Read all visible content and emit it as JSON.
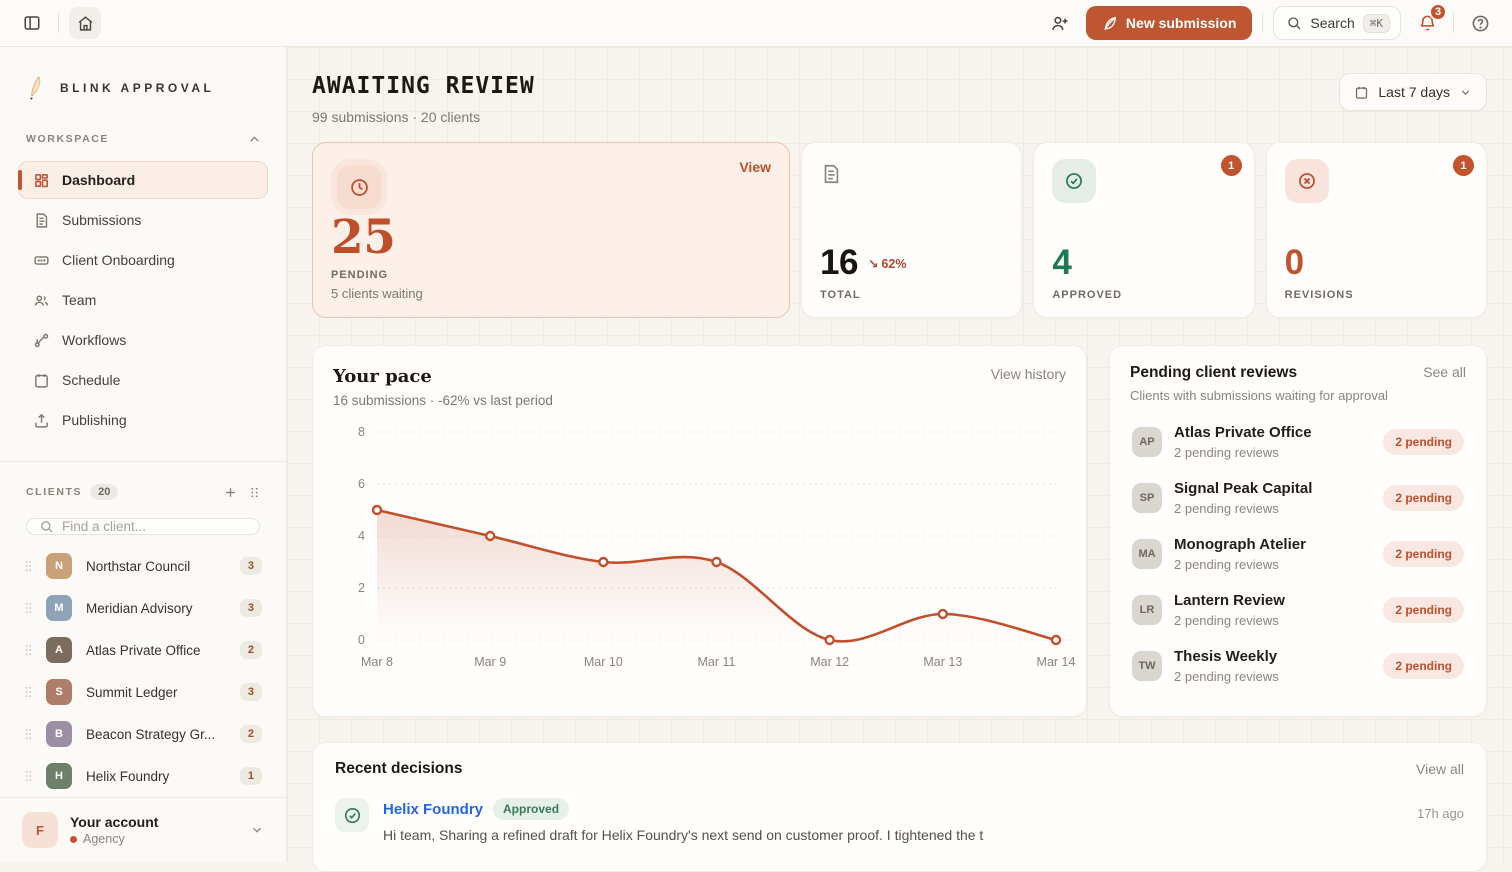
{
  "topbar": {
    "new_submission_label": "New submission",
    "search_label": "Search",
    "search_kbd": "⌘K",
    "notification_count": "3"
  },
  "sidebar": {
    "brand": "BLINK APPROVAL",
    "workspace_label": "WORKSPACE",
    "nav": [
      {
        "label": "Dashboard",
        "icon": "dashboard-grid",
        "active": true
      },
      {
        "label": "Submissions",
        "icon": "document"
      },
      {
        "label": "Client Onboarding",
        "icon": "input-box"
      },
      {
        "label": "Team",
        "icon": "people"
      },
      {
        "label": "Workflows",
        "icon": "branch"
      },
      {
        "label": "Schedule",
        "icon": "calendar"
      },
      {
        "label": "Publishing",
        "icon": "upload"
      }
    ],
    "clients_label": "CLIENTS",
    "clients_count": "20",
    "client_search_placeholder": "Find a client...",
    "clients": [
      {
        "name": "Northstar Council",
        "count": "3"
      },
      {
        "name": "Meridian Advisory",
        "count": "3"
      },
      {
        "name": "Atlas Private Office",
        "count": "2"
      },
      {
        "name": "Summit Ledger",
        "count": "3"
      },
      {
        "name": "Beacon Strategy Gr...",
        "count": "2"
      },
      {
        "name": "Helix Foundry",
        "count": "1"
      }
    ],
    "account": {
      "initial": "F",
      "title": "Your account",
      "role": "Agency"
    }
  },
  "header": {
    "title": "AWAITING REVIEW",
    "subtitle": "99 submissions · 20 clients",
    "period": "Last 7 days"
  },
  "stats": {
    "pending": {
      "value": "25",
      "label": "PENDING",
      "sub": "5 clients waiting",
      "link": "View"
    },
    "total": {
      "value": "16",
      "delta": "62%",
      "trend_down_glyph": "↘",
      "label": "TOTAL"
    },
    "approved": {
      "value": "4",
      "label": "APPROVED",
      "badge": "1"
    },
    "revisions": {
      "value": "0",
      "label": "REVISIONS",
      "badge": "1"
    }
  },
  "pace": {
    "title": "Your pace",
    "subtitle": "16 submissions · -62% vs last period",
    "link": "View history"
  },
  "chart_data": {
    "type": "line",
    "title": "Your pace",
    "x": [
      "Mar 8",
      "Mar 9",
      "Mar 10",
      "Mar 11",
      "Mar 12",
      "Mar 13",
      "Mar 14"
    ],
    "series": [
      {
        "name": "submissions",
        "values": [
          5,
          4,
          3,
          3,
          0,
          1,
          0
        ]
      }
    ],
    "ylim": [
      0,
      8
    ],
    "yticks": [
      0,
      2,
      4,
      6,
      8
    ],
    "line_color": "#c2502c",
    "area_fill": "gradient-rust",
    "grid": "dotted-horizontal",
    "legend": false
  },
  "reviews": {
    "title": "Pending client reviews",
    "link": "See all",
    "subtitle": "Clients with submissions waiting for approval",
    "items": [
      {
        "initials": "AP",
        "name": "Atlas Private Office",
        "sub": "2 pending reviews",
        "badge": "2 pending"
      },
      {
        "initials": "SP",
        "name": "Signal Peak Capital",
        "sub": "2 pending reviews",
        "badge": "2 pending"
      },
      {
        "initials": "MA",
        "name": "Monograph Atelier",
        "sub": "2 pending reviews",
        "badge": "2 pending"
      },
      {
        "initials": "LR",
        "name": "Lantern Review",
        "sub": "2 pending reviews",
        "badge": "2 pending"
      },
      {
        "initials": "TW",
        "name": "Thesis Weekly",
        "sub": "2 pending reviews",
        "badge": "2 pending"
      }
    ]
  },
  "recent": {
    "title": "Recent decisions",
    "link": "View all",
    "items": [
      {
        "client": "Helix Foundry",
        "status": "Approved",
        "time": "17h ago",
        "message": "Hi team, Sharing a refined draft for Helix Foundry's next send on customer proof. I tightened the t"
      }
    ]
  },
  "colors": {
    "accent": "#bf5632",
    "rust_text": "#bf4e2b",
    "green": "#1e7a52",
    "blue": "#2563eb"
  }
}
